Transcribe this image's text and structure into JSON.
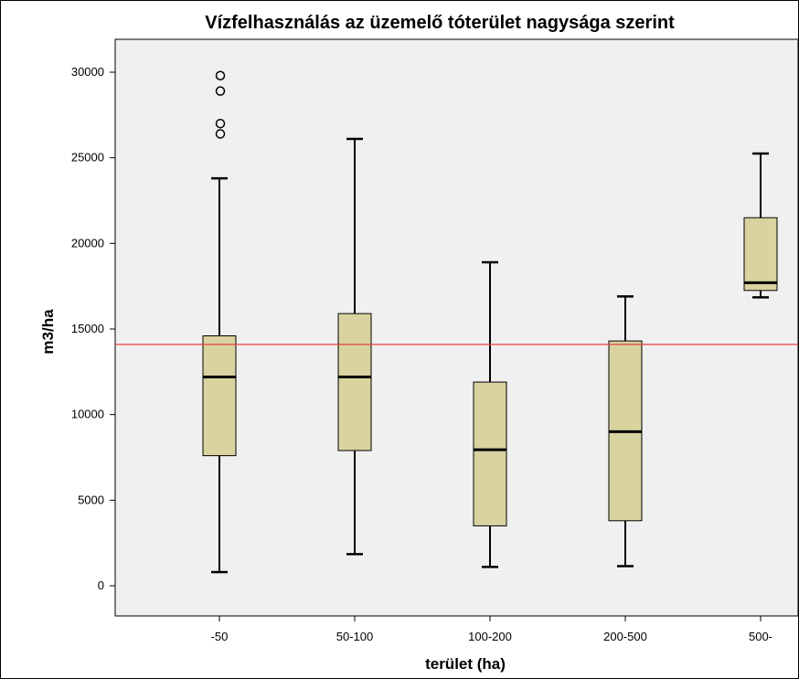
{
  "chart_data": {
    "type": "boxplot",
    "title": "Vízfelhasználás az üzemelő tóterület nagysága szerint",
    "xlabel": "terület (ha)",
    "ylabel": "m3/ha",
    "ylim": [
      -1500,
      32000
    ],
    "yticks": [
      0,
      5000,
      10000,
      15000,
      20000,
      25000,
      30000
    ],
    "reference_line": {
      "y": 14100,
      "color": "#e8413f"
    },
    "box_color": "#d9d3a0",
    "plot_background": "#f0f0f0",
    "grid": false,
    "categories": [
      "-50",
      "50-100",
      "100-200",
      "200-500",
      "500-"
    ],
    "boxes": [
      {
        "category": "-50",
        "min": 800,
        "q1": 7600,
        "median": 12200,
        "q3": 14600,
        "max": 23800,
        "outliers": [
          26400,
          27000,
          28900,
          29800
        ]
      },
      {
        "category": "50-100",
        "min": 1850,
        "q1": 7900,
        "median": 12200,
        "q3": 15900,
        "max": 26100,
        "outliers": []
      },
      {
        "category": "100-200",
        "min": 1100,
        "q1": 3500,
        "median": 7950,
        "q3": 11900,
        "max": 18900,
        "outliers": []
      },
      {
        "category": "200-500",
        "min": 1150,
        "q1": 3800,
        "median": 9000,
        "q3": 14300,
        "max": 16900,
        "outliers": []
      },
      {
        "category": "500-",
        "min": 16850,
        "q1": 17250,
        "median": 17700,
        "q3": 21500,
        "max": 25250,
        "outliers": []
      }
    ]
  }
}
